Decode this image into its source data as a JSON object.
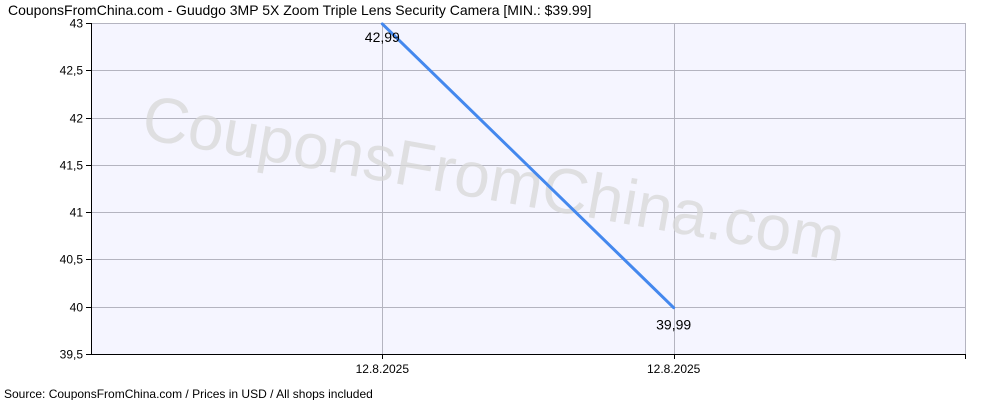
{
  "chart_data": {
    "type": "line",
    "title": "CouponsFromChina.com - Guudgo 3MP 5X Zoom Triple Lens Security Camera [MIN.: $39.99]",
    "x_categories": [
      "12.8.2025",
      "12.8.2025"
    ],
    "x_ticks": [
      {
        "label": "12.8.2025",
        "slot": 1
      },
      {
        "label": "12.8.2025",
        "slot": 2
      }
    ],
    "x_slots": 3,
    "series": [
      {
        "points": [
          {
            "slot": 1,
            "value": 42.99,
            "label": "42,99"
          },
          {
            "slot": 2,
            "value": 39.99,
            "label": "39,99"
          }
        ]
      }
    ],
    "y_ticks": [
      {
        "value": 39.5,
        "label": "39,5"
      },
      {
        "value": 40,
        "label": "40"
      },
      {
        "value": 40.5,
        "label": "40,5"
      },
      {
        "value": 41,
        "label": "41"
      },
      {
        "value": 41.5,
        "label": "41,5"
      },
      {
        "value": 42,
        "label": "42"
      },
      {
        "value": 42.5,
        "label": "42,5"
      },
      {
        "value": 43,
        "label": "43"
      }
    ],
    "ylim": [
      39.5,
      43
    ],
    "xlabel": "",
    "ylabel": "",
    "grid": true,
    "watermark": "CouponsFromChina.com",
    "source": "Source:  CouponsFromChina.com / Prices in USD / All shops included",
    "colors": {
      "line": "#4488ee",
      "grid": "#b4b4c0",
      "plot_background": "#f5f5ff",
      "axis": "#000000",
      "watermark": "#d8d8d8"
    }
  }
}
